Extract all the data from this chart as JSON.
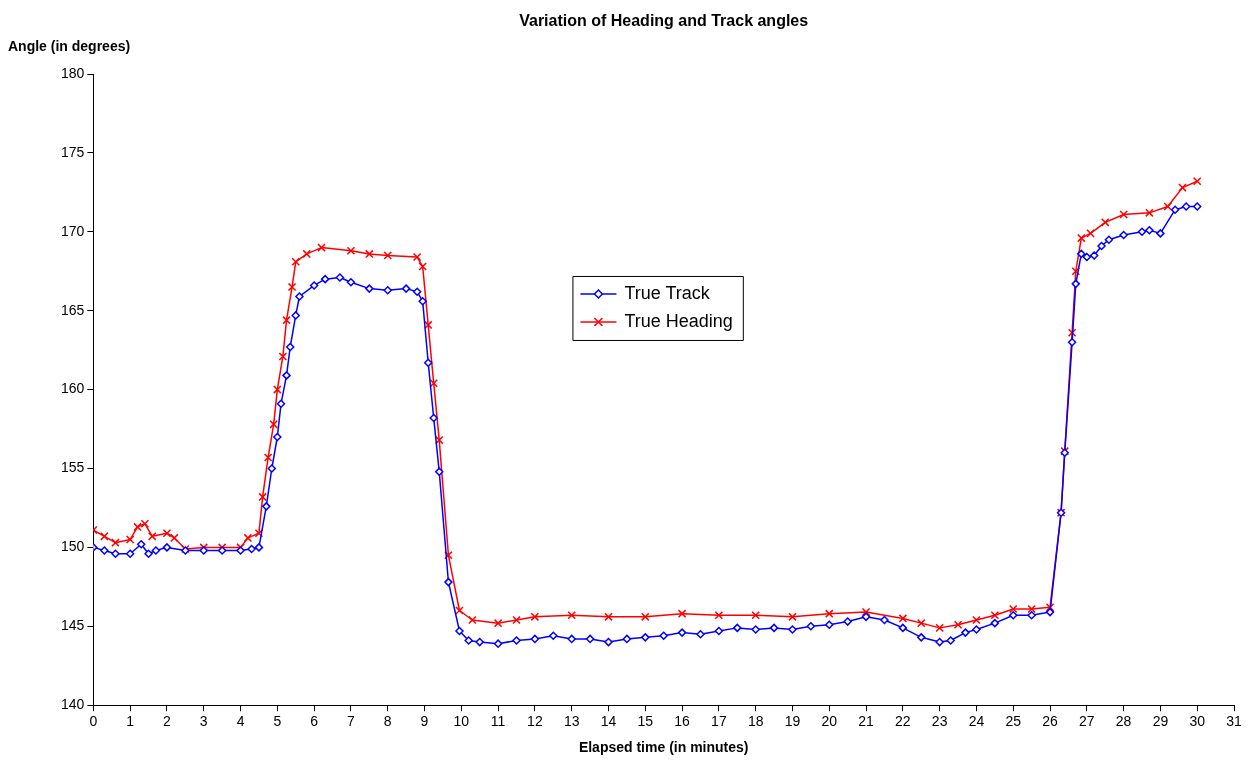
{
  "chart_data": {
    "type": "line",
    "title": "Variation of Heading and Track angles",
    "xlabel": "Elapsed time (in minutes)",
    "ylabel": "Angle (in degrees)",
    "xlim": [
      0,
      31
    ],
    "xticks": [
      0,
      1,
      2,
      3,
      4,
      5,
      6,
      7,
      8,
      9,
      10,
      11,
      12,
      13,
      14,
      15,
      16,
      17,
      18,
      19,
      20,
      21,
      22,
      23,
      24,
      25,
      26,
      27,
      28,
      29,
      30,
      31
    ],
    "ylim": [
      140,
      180
    ],
    "yticks": [
      140,
      145,
      150,
      155,
      160,
      165,
      170,
      175,
      180
    ],
    "grid": false,
    "legend": "top center",
    "line_style": "solid",
    "series": [
      {
        "name": "True Track",
        "color": "#0000ff",
        "marker": "diamond",
        "x": [
          0,
          0.3,
          0.6,
          1.0,
          1.3,
          1.5,
          1.7,
          2.0,
          2.5,
          3.0,
          3.5,
          4.0,
          4.3,
          4.5,
          4.7,
          4.85,
          5.0,
          5.1,
          5.25,
          5.35,
          5.5,
          5.6,
          6.0,
          6.3,
          6.7,
          7.0,
          7.5,
          8.0,
          8.5,
          8.8,
          8.95,
          9.1,
          9.25,
          9.4,
          9.65,
          9.95,
          10.2,
          10.5,
          11,
          11.5,
          12,
          12.5,
          13,
          13.5,
          14,
          14.5,
          15,
          15.5,
          16,
          16.5,
          17,
          17.5,
          18,
          18.5,
          19,
          19.5,
          20,
          20.5,
          21,
          21.5,
          22,
          22.5,
          23,
          23.3,
          23.7,
          24,
          24.5,
          25,
          25.5,
          26,
          26.3,
          26.4,
          26.6,
          26.7,
          26.85,
          27.0,
          27.2,
          27.4,
          27.6,
          28,
          28.5,
          28.7,
          29,
          29.4,
          29.7,
          30
        ],
        "values": [
          150.0,
          149.8,
          149.6,
          149.6,
          150.2,
          149.6,
          149.8,
          150.0,
          149.8,
          149.8,
          149.8,
          149.8,
          149.9,
          150.0,
          152.6,
          155.0,
          157.0,
          159.1,
          160.9,
          162.7,
          164.7,
          165.9,
          166.6,
          167.0,
          167.1,
          166.8,
          166.4,
          166.3,
          166.4,
          166.2,
          165.6,
          161.7,
          158.2,
          154.8,
          147.8,
          144.7,
          144.1,
          144.0,
          143.9,
          144.1,
          144.2,
          144.4,
          144.2,
          144.2,
          144.0,
          144.2,
          144.3,
          144.4,
          144.6,
          144.5,
          144.7,
          144.9,
          144.8,
          144.9,
          144.8,
          145.0,
          145.1,
          145.3,
          145.6,
          145.4,
          144.9,
          144.3,
          144.0,
          144.1,
          144.6,
          144.8,
          145.2,
          145.7,
          145.7,
          145.9,
          152.2,
          156.0,
          163.0,
          166.7,
          168.6,
          168.4,
          168.5,
          169.1,
          169.5,
          169.8,
          170.0,
          170.1,
          169.9,
          171.4,
          171.6,
          171.6
        ]
      },
      {
        "name": "True Heading",
        "color": "#ff0000",
        "marker": "cross",
        "x": [
          0,
          0.3,
          0.6,
          1.0,
          1.2,
          1.4,
          1.6,
          2.0,
          2.2,
          2.5,
          3.0,
          3.5,
          4.0,
          4.2,
          4.5,
          4.6,
          4.75,
          4.9,
          5.0,
          5.15,
          5.25,
          5.4,
          5.5,
          5.8,
          6.2,
          7.0,
          7.5,
          8.0,
          8.8,
          8.95,
          9.1,
          9.25,
          9.4,
          9.65,
          9.95,
          10.3,
          11,
          11.5,
          12,
          13,
          14,
          15,
          16,
          17,
          18,
          19,
          20,
          21,
          22,
          22.5,
          23,
          23.5,
          24,
          24.5,
          25,
          25.5,
          26,
          26.3,
          26.4,
          26.6,
          26.7,
          26.85,
          27.1,
          27.5,
          28,
          28.7,
          29.2,
          29.6,
          30
        ],
        "values": [
          151.1,
          150.7,
          150.3,
          150.5,
          151.3,
          151.5,
          150.7,
          150.9,
          150.6,
          149.9,
          150.0,
          150.0,
          150.0,
          150.6,
          150.9,
          153.2,
          155.7,
          157.8,
          160.0,
          162.1,
          164.4,
          166.5,
          168.1,
          168.6,
          169.0,
          168.8,
          168.6,
          168.5,
          168.4,
          167.8,
          164.1,
          160.4,
          156.8,
          149.5,
          146.0,
          145.4,
          145.2,
          145.4,
          145.6,
          145.7,
          145.6,
          145.6,
          145.8,
          145.7,
          145.7,
          145.6,
          145.8,
          145.9,
          145.5,
          145.2,
          144.9,
          145.1,
          145.4,
          145.7,
          146.1,
          146.1,
          146.2,
          152.2,
          156.1,
          163.6,
          167.5,
          169.6,
          169.9,
          170.6,
          171.1,
          171.2,
          171.6,
          172.8,
          173.2
        ]
      }
    ]
  }
}
